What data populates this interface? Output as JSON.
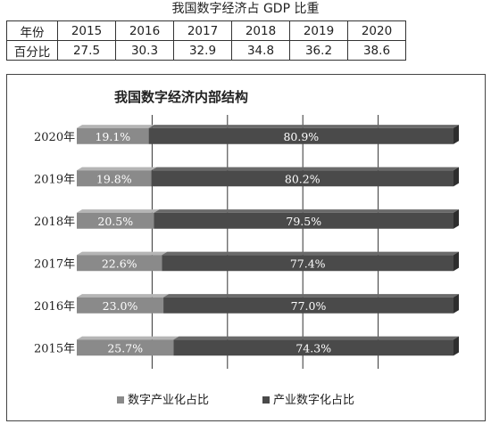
{
  "header": {
    "title": "我国数字经济占 GDP 比重"
  },
  "gdp_table": {
    "row_header_year": "年份",
    "row_header_pct": "百分比",
    "years": [
      "2015",
      "2016",
      "2017",
      "2018",
      "2019",
      "2020"
    ],
    "values": [
      "27.5",
      "30.3",
      "32.9",
      "34.8",
      "36.2",
      "38.6"
    ]
  },
  "chart_data": {
    "type": "bar",
    "orientation": "horizontal",
    "stacked": "percent",
    "title": "我国数字经济内部结构",
    "categories": [
      "2020年",
      "2019年",
      "2018年",
      "2017年",
      "2016年",
      "2015年"
    ],
    "series": [
      {
        "name": "数字产业化占比",
        "values": [
          19.1,
          19.8,
          20.5,
          22.6,
          23.0,
          25.7
        ],
        "labels": [
          "19.1%",
          "19.8%",
          "20.5%",
          "22.6%",
          "23.0%",
          "25.7%"
        ],
        "color": "#8a8a8a"
      },
      {
        "name": "产业数字化占比",
        "values": [
          80.9,
          80.2,
          79.5,
          77.4,
          77.0,
          74.3
        ],
        "labels": [
          "80.9%",
          "80.2%",
          "79.5%",
          "77.4%",
          "77.0%",
          "74.3%"
        ],
        "color": "#4a4a4a"
      }
    ],
    "xlim": [
      0,
      100
    ],
    "grid": true,
    "legend_position": "bottom"
  }
}
